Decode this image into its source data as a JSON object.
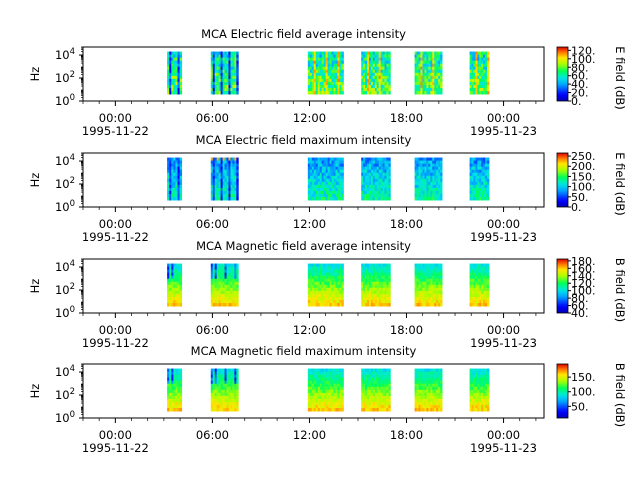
{
  "chart_data": [
    {
      "type": "heatmap",
      "title": "MCA  Electric field average intensity",
      "ylabel": "Hz",
      "y_scale": "log",
      "ylim": [
        1,
        50000
      ],
      "y_ticks": [
        {
          "base": "10",
          "exp": "0"
        },
        {
          "base": "10",
          "exp": "2"
        },
        {
          "base": "10",
          "exp": "4"
        }
      ],
      "x_ticks": [
        "00:00",
        "06:00",
        "12:00",
        "18:00",
        "00:00"
      ],
      "x_dates": [
        "1995-11-22",
        "1995-11-23"
      ],
      "x_hours_range": [
        -2,
        26.5
      ],
      "data_intervals_hours": [
        [
          3.2,
          4.1
        ],
        [
          5.9,
          7.6
        ],
        [
          11.9,
          14.1
        ],
        [
          15.2,
          17.0
        ],
        [
          18.5,
          20.2
        ],
        [
          21.9,
          23.1
        ]
      ],
      "colorbar": {
        "label": "E field (dB)",
        "range": [
          0,
          128
        ],
        "ticks": [
          "0.",
          "20.",
          "40.",
          "60.",
          "80.",
          "100.",
          "120."
        ]
      },
      "colors": {
        "low": "#0000cc",
        "mid": "#00ff66",
        "high": "#ff0000"
      }
    },
    {
      "type": "heatmap",
      "title": "MCA  Electric field maximum intensity",
      "ylabel": "Hz",
      "y_scale": "log",
      "ylim": [
        1,
        50000
      ],
      "y_ticks": [
        {
          "base": "10",
          "exp": "0"
        },
        {
          "base": "10",
          "exp": "2"
        },
        {
          "base": "10",
          "exp": "4"
        }
      ],
      "x_ticks": [
        "00:00",
        "06:00",
        "12:00",
        "18:00",
        "00:00"
      ],
      "x_dates": [
        "1995-11-22",
        "1995-11-23"
      ],
      "x_hours_range": [
        -2,
        26.5
      ],
      "data_intervals_hours": [
        [
          3.2,
          4.1
        ],
        [
          5.9,
          7.6
        ],
        [
          11.9,
          14.1
        ],
        [
          15.2,
          17.0
        ],
        [
          18.5,
          20.2
        ],
        [
          21.9,
          23.1
        ]
      ],
      "colorbar": {
        "label": "E field (dB)",
        "range": [
          0,
          265
        ],
        "ticks": [
          "0.",
          "50.",
          "100.",
          "150.",
          "200.",
          "250."
        ]
      },
      "colors": {
        "low": "#0000cc",
        "mid": "#00ff66",
        "high": "#ff0000"
      }
    },
    {
      "type": "heatmap",
      "title": "MCA  Magnetic field average intensity",
      "ylabel": "Hz",
      "y_scale": "log",
      "ylim": [
        1,
        50000
      ],
      "y_ticks": [
        {
          "base": "10",
          "exp": "0"
        },
        {
          "base": "10",
          "exp": "2"
        },
        {
          "base": "10",
          "exp": "4"
        }
      ],
      "x_ticks": [
        "00:00",
        "06:00",
        "12:00",
        "18:00",
        "00:00"
      ],
      "x_dates": [
        "1995-11-22",
        "1995-11-23"
      ],
      "x_hours_range": [
        -2,
        26.5
      ],
      "data_intervals_hours": [
        [
          3.2,
          4.1
        ],
        [
          5.9,
          7.6
        ],
        [
          11.9,
          14.1
        ],
        [
          15.2,
          17.0
        ],
        [
          18.5,
          20.2
        ],
        [
          21.9,
          23.1
        ]
      ],
      "colorbar": {
        "label": "B field (dB)",
        "range": [
          40,
          185
        ],
        "ticks": [
          "40.",
          "60.",
          "80.",
          "100.",
          "120.",
          "140.",
          "160.",
          "180."
        ]
      },
      "colors": {
        "low": "#0000cc",
        "mid": "#00ff66",
        "high": "#ff0000"
      }
    },
    {
      "type": "heatmap",
      "title": "MCA  Magnetic field maximum intensity",
      "ylabel": "Hz",
      "y_scale": "log",
      "ylim": [
        1,
        50000
      ],
      "y_ticks": [
        {
          "base": "10",
          "exp": "0"
        },
        {
          "base": "10",
          "exp": "2"
        },
        {
          "base": "10",
          "exp": "4"
        }
      ],
      "x_ticks": [
        "00:00",
        "06:00",
        "12:00",
        "18:00",
        "00:00"
      ],
      "x_dates": [
        "1995-11-22",
        "1995-11-23"
      ],
      "x_hours_range": [
        -2,
        26.5
      ],
      "data_intervals_hours": [
        [
          3.2,
          4.1
        ],
        [
          5.9,
          7.6
        ],
        [
          11.9,
          14.1
        ],
        [
          15.2,
          17.0
        ],
        [
          18.5,
          20.2
        ],
        [
          21.9,
          23.1
        ]
      ],
      "colorbar": {
        "label": "B field (dB)",
        "range": [
          10,
          195
        ],
        "ticks": [
          "50.",
          "100.",
          "150."
        ]
      },
      "colors": {
        "low": "#0000cc",
        "mid": "#00ff66",
        "high": "#ff0000"
      }
    }
  ]
}
